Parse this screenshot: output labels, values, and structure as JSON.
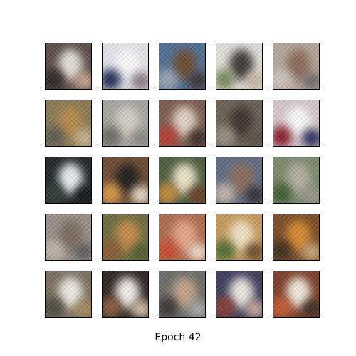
{
  "figure": {
    "caption": "Epoch 42",
    "tiles": [
      {
        "bg": "#5a4a44",
        "blobs": [
          "#e8e2dc",
          "#2a2224",
          "#c9a48c"
        ]
      },
      {
        "bg": "#e9e6ee",
        "blobs": [
          "#ffffff",
          "#1f2a55",
          "#8a7a86"
        ]
      },
      {
        "bg": "#4e6e94",
        "blobs": [
          "#6a4a2e",
          "#9ba6b6",
          "#3a2e2c"
        ]
      },
      {
        "bg": "#e6e4de",
        "blobs": [
          "#3c3634",
          "#7a8a5c",
          "#c9b6a2"
        ]
      },
      {
        "bg": "#b7a89c",
        "blobs": [
          "#8c6a5a",
          "#cfc6be",
          "#6e6a66"
        ]
      },
      {
        "bg": "#8a7a52",
        "blobs": [
          "#b8884a",
          "#5c5a4c",
          "#c9b48e"
        ]
      },
      {
        "bg": "#a8a6a0",
        "blobs": [
          "#d8d2c8",
          "#6e6a66",
          "#8a8a84"
        ]
      },
      {
        "bg": "#7a5a4c",
        "blobs": [
          "#e6d6c8",
          "#b83a2e",
          "#3a2a26"
        ]
      },
      {
        "bg": "#6a5e52",
        "blobs": [
          "#3a302a",
          "#9a8e80",
          "#5a4c42"
        ]
      },
      {
        "bg": "#d8c8cc",
        "blobs": [
          "#ffffff",
          "#8a1a2e",
          "#2a2a5a"
        ]
      },
      {
        "bg": "#1c2222",
        "blobs": [
          "#eef2f6",
          "#2c3a36",
          "#0e1414"
        ]
      },
      {
        "bg": "#6e4a2e",
        "blobs": [
          "#1e1a18",
          "#d89a4a",
          "#e8dccc"
        ]
      },
      {
        "bg": "#4a5a3a",
        "blobs": [
          "#f2e6cc",
          "#c88a3a",
          "#6a3a22"
        ]
      },
      {
        "bg": "#5e6a82",
        "blobs": [
          "#8a6a5a",
          "#c4b6aa",
          "#2e2a30"
        ]
      },
      {
        "bg": "#7a8a6a",
        "blobs": [
          "#b6b0a2",
          "#3e5a2e",
          "#9a9688"
        ]
      },
      {
        "bg": "#9a9088",
        "blobs": [
          "#7a6a5a",
          "#c0b6aa",
          "#5a5a5a"
        ]
      },
      {
        "bg": "#6e6a3a",
        "blobs": [
          "#c88a4a",
          "#8a5a2e",
          "#4e5a2a"
        ]
      },
      {
        "bg": "#b06a4a",
        "blobs": [
          "#e8a88a",
          "#c8482e",
          "#f0dccc"
        ]
      },
      {
        "bg": "#c89a5a",
        "blobs": [
          "#f6e6c6",
          "#4e6a2e",
          "#6a4a2a"
        ]
      },
      {
        "bg": "#7a4a22",
        "blobs": [
          "#d88a2e",
          "#3e2a1a",
          "#c8a878"
        ]
      },
      {
        "bg": "#7a6e5e",
        "blobs": [
          "#f2eee8",
          "#4a4a3a",
          "#a88a5a"
        ]
      },
      {
        "bg": "#2a201c",
        "blobs": [
          "#f6f2ee",
          "#8a5a3a",
          "#d8c0a8"
        ]
      },
      {
        "bg": "#6a6a66",
        "blobs": [
          "#c8a48a",
          "#3a3432",
          "#a8aaa8"
        ]
      },
      {
        "bg": "#3a3a5a",
        "blobs": [
          "#f2ece6",
          "#8a3a2e",
          "#c8a898"
        ]
      },
      {
        "bg": "#7a3a22",
        "blobs": [
          "#f6eee2",
          "#c85a2e",
          "#3a2a22"
        ]
      }
    ]
  }
}
